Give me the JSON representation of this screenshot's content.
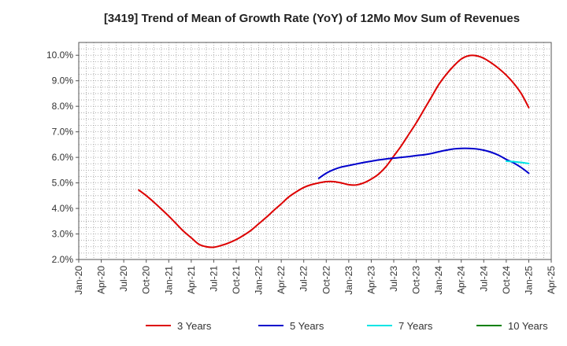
{
  "chart_data": {
    "type": "line",
    "title": "[3419]  Trend of Mean of Growth Rate (YoY) of 12Mo Mov Sum of Revenues",
    "xlabel": "",
    "ylabel": "",
    "x_ticks": [
      "Jan-20",
      "Apr-20",
      "Jul-20",
      "Oct-20",
      "Jan-21",
      "Apr-21",
      "Jul-21",
      "Oct-21",
      "Jan-22",
      "Apr-22",
      "Jul-22",
      "Oct-22",
      "Jan-23",
      "Apr-23",
      "Jul-23",
      "Oct-23",
      "Jan-24",
      "Apr-24",
      "Jul-24",
      "Oct-24",
      "Jan-25",
      "Apr-25"
    ],
    "y_ticks": [
      "2.0%",
      "3.0%",
      "4.0%",
      "5.0%",
      "6.0%",
      "7.0%",
      "8.0%",
      "9.0%",
      "10.0%"
    ],
    "ylim": [
      2.0,
      10.5
    ],
    "grid": true,
    "legend_position": "bottom",
    "series": [
      {
        "name": "3 Years",
        "color": "#dd0000",
        "points": [
          [
            "Sep-20",
            4.72
          ],
          [
            "Oct-20",
            4.5
          ],
          [
            "Nov-20",
            4.25
          ],
          [
            "Dec-20",
            3.98
          ],
          [
            "Jan-21",
            3.7
          ],
          [
            "Feb-21",
            3.4
          ],
          [
            "Mar-21",
            3.1
          ],
          [
            "Apr-21",
            2.85
          ],
          [
            "May-21",
            2.6
          ],
          [
            "Jun-21",
            2.5
          ],
          [
            "Jul-21",
            2.48
          ],
          [
            "Aug-21",
            2.55
          ],
          [
            "Sep-21",
            2.65
          ],
          [
            "Oct-21",
            2.78
          ],
          [
            "Nov-21",
            2.95
          ],
          [
            "Dec-21",
            3.15
          ],
          [
            "Jan-22",
            3.4
          ],
          [
            "Feb-22",
            3.65
          ],
          [
            "Mar-22",
            3.92
          ],
          [
            "Apr-22",
            4.18
          ],
          [
            "May-22",
            4.45
          ],
          [
            "Jun-22",
            4.65
          ],
          [
            "Jul-22",
            4.82
          ],
          [
            "Aug-22",
            4.93
          ],
          [
            "Sep-22",
            5.0
          ],
          [
            "Oct-22",
            5.05
          ],
          [
            "Nov-22",
            5.05
          ],
          [
            "Dec-22",
            5.0
          ],
          [
            "Jan-23",
            4.93
          ],
          [
            "Feb-23",
            4.92
          ],
          [
            "Mar-23",
            5.0
          ],
          [
            "Apr-23",
            5.15
          ],
          [
            "May-23",
            5.35
          ],
          [
            "Jun-23",
            5.65
          ],
          [
            "Jul-23",
            6.05
          ],
          [
            "Aug-23",
            6.45
          ],
          [
            "Sep-23",
            6.9
          ],
          [
            "Oct-23",
            7.35
          ],
          [
            "Nov-23",
            7.85
          ],
          [
            "Dec-23",
            8.35
          ],
          [
            "Jan-24",
            8.85
          ],
          [
            "Feb-24",
            9.25
          ],
          [
            "Mar-24",
            9.58
          ],
          [
            "Apr-24",
            9.85
          ],
          [
            "May-24",
            9.98
          ],
          [
            "Jun-24",
            9.98
          ],
          [
            "Jul-24",
            9.88
          ],
          [
            "Aug-24",
            9.7
          ],
          [
            "Sep-24",
            9.48
          ],
          [
            "Oct-24",
            9.22
          ],
          [
            "Nov-24",
            8.9
          ],
          [
            "Dec-24",
            8.5
          ],
          [
            "Jan-25",
            7.95
          ]
        ]
      },
      {
        "name": "5 Years",
        "color": "#0000cc",
        "points": [
          [
            "Sep-22",
            5.18
          ],
          [
            "Oct-22",
            5.38
          ],
          [
            "Nov-22",
            5.52
          ],
          [
            "Dec-22",
            5.62
          ],
          [
            "Jan-23",
            5.68
          ],
          [
            "Feb-23",
            5.74
          ],
          [
            "Mar-23",
            5.8
          ],
          [
            "Apr-23",
            5.85
          ],
          [
            "May-23",
            5.9
          ],
          [
            "Jun-23",
            5.94
          ],
          [
            "Jul-23",
            5.97
          ],
          [
            "Aug-23",
            6.0
          ],
          [
            "Sep-23",
            6.03
          ],
          [
            "Oct-23",
            6.07
          ],
          [
            "Nov-23",
            6.1
          ],
          [
            "Dec-23",
            6.15
          ],
          [
            "Jan-24",
            6.22
          ],
          [
            "Feb-24",
            6.28
          ],
          [
            "Mar-24",
            6.33
          ],
          [
            "Apr-24",
            6.35
          ],
          [
            "May-24",
            6.35
          ],
          [
            "Jun-24",
            6.33
          ],
          [
            "Jul-24",
            6.28
          ],
          [
            "Aug-24",
            6.2
          ],
          [
            "Sep-24",
            6.08
          ],
          [
            "Oct-24",
            5.92
          ],
          [
            "Nov-24",
            5.78
          ],
          [
            "Dec-24",
            5.6
          ],
          [
            "Jan-25",
            5.38
          ]
        ]
      },
      {
        "name": "7 Years",
        "color": "#00e5e5",
        "points": [
          [
            "Oct-24",
            5.85
          ],
          [
            "Nov-24",
            5.83
          ],
          [
            "Dec-24",
            5.8
          ],
          [
            "Jan-25",
            5.76
          ]
        ]
      },
      {
        "name": "10 Years",
        "color": "#008000",
        "points": []
      }
    ]
  }
}
